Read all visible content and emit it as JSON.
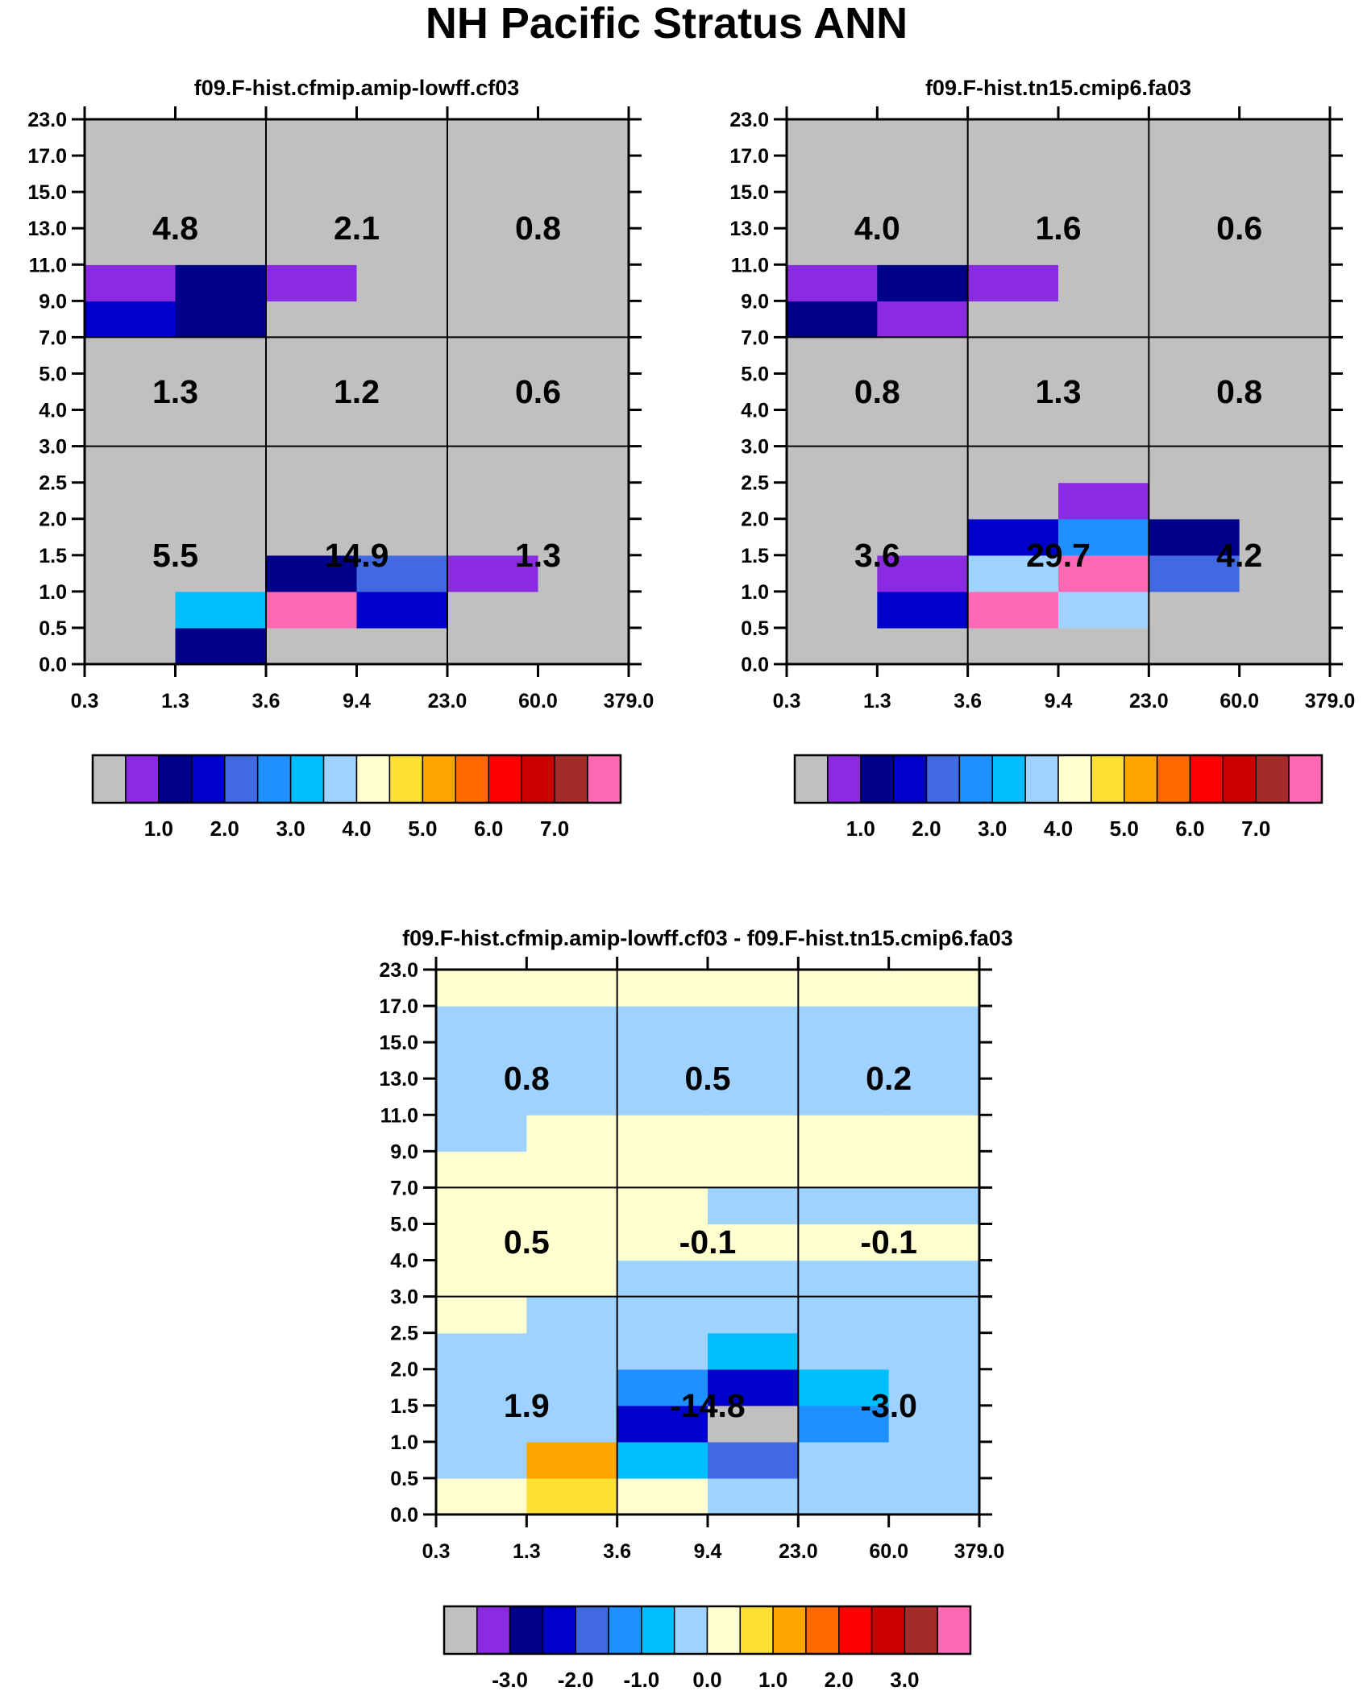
{
  "title": "NH Pacific Stratus ANN",
  "chart_data": [
    {
      "type": "heatmap",
      "title": "f09.F-hist.cfmip.amip-lowff.cf03",
      "x_tick_labels": [
        "0.3",
        "1.3",
        "3.6",
        "9.4",
        "23.0",
        "60.0",
        "379.0"
      ],
      "y_tick_labels": [
        "0.0",
        "0.5",
        "1.0",
        "1.5",
        "2.0",
        "2.5",
        "3.0",
        "4.0",
        "5.0",
        "7.0",
        "9.0",
        "11.0",
        "13.0",
        "15.0",
        "17.0",
        "23.0"
      ],
      "row_order": "bottom-to-top",
      "cells": [
        [
          "gray",
          "navy",
          "gray",
          "gray",
          "gray",
          "gray"
        ],
        [
          "gray",
          "deepskyblue",
          "hotpink",
          "mediumblue",
          "gray",
          "gray"
        ],
        [
          "gray",
          "gray",
          "navy",
          "royalblue",
          "blueviolet",
          "gray"
        ],
        [
          "gray",
          "gray",
          "gray",
          "gray",
          "gray",
          "gray"
        ],
        [
          "gray",
          "gray",
          "gray",
          "gray",
          "gray",
          "gray"
        ],
        [
          "gray",
          "gray",
          "gray",
          "gray",
          "gray",
          "gray"
        ],
        [
          "gray",
          "gray",
          "gray",
          "gray",
          "gray",
          "gray"
        ],
        [
          "gray",
          "gray",
          "gray",
          "gray",
          "gray",
          "gray"
        ],
        [
          "gray",
          "gray",
          "gray",
          "gray",
          "gray",
          "gray"
        ],
        [
          "mediumblue",
          "navy",
          "gray",
          "gray",
          "gray",
          "gray"
        ],
        [
          "blueviolet",
          "navy",
          "blueviolet",
          "gray",
          "gray",
          "gray"
        ],
        [
          "gray",
          "gray",
          "gray",
          "gray",
          "gray",
          "gray"
        ],
        [
          "gray",
          "gray",
          "gray",
          "gray",
          "gray",
          "gray"
        ],
        [
          "gray",
          "gray",
          "gray",
          "gray",
          "gray",
          "gray"
        ],
        [
          "gray",
          "gray",
          "gray",
          "gray",
          "gray",
          "gray"
        ]
      ],
      "regions": [
        {
          "label": "5.5",
          "col": 0,
          "band": 0
        },
        {
          "label": "14.9",
          "col": 1,
          "band": 0
        },
        {
          "label": "1.3",
          "col": 2,
          "band": 0
        },
        {
          "label": "1.3",
          "col": 0,
          "band": 1
        },
        {
          "label": "1.2",
          "col": 1,
          "band": 1
        },
        {
          "label": "0.6",
          "col": 2,
          "band": 1
        },
        {
          "label": "4.8",
          "col": 0,
          "band": 2
        },
        {
          "label": "2.1",
          "col": 1,
          "band": 2
        },
        {
          "label": "0.8",
          "col": 2,
          "band": 2
        }
      ],
      "colorbar": {
        "colors": [
          "#c0c0c0",
          "#8a2be2",
          "#00008b",
          "#0000cd",
          "#4169e1",
          "#1e90ff",
          "#00bfff",
          "#a0d2ff",
          "#ffffd0",
          "#ffe135",
          "#ffa500",
          "#ff6a00",
          "#ff0000",
          "#cd0000",
          "#a52a2a",
          "#ff69b4"
        ],
        "labels": [
          "1.0",
          "2.0",
          "3.0",
          "4.0",
          "5.0",
          "6.0",
          "7.0"
        ]
      }
    },
    {
      "type": "heatmap",
      "title": "f09.F-hist.tn15.cmip6.fa03",
      "x_tick_labels": [
        "0.3",
        "1.3",
        "3.6",
        "9.4",
        "23.0",
        "60.0",
        "379.0"
      ],
      "y_tick_labels": [
        "0.0",
        "0.5",
        "1.0",
        "1.5",
        "2.0",
        "2.5",
        "3.0",
        "4.0",
        "5.0",
        "7.0",
        "9.0",
        "11.0",
        "13.0",
        "15.0",
        "17.0",
        "23.0"
      ],
      "row_order": "bottom-to-top",
      "cells": [
        [
          "gray",
          "gray",
          "gray",
          "gray",
          "gray",
          "gray"
        ],
        [
          "gray",
          "mediumblue",
          "hotpink",
          "lightskyblue",
          "gray",
          "gray"
        ],
        [
          "gray",
          "blueviolet",
          "lightskyblue",
          "hotpink",
          "royalblue",
          "gray"
        ],
        [
          "gray",
          "gray",
          "mediumblue",
          "dodgerblue",
          "navy",
          "gray"
        ],
        [
          "gray",
          "gray",
          "gray",
          "blueviolet",
          "gray",
          "gray"
        ],
        [
          "gray",
          "gray",
          "gray",
          "gray",
          "gray",
          "gray"
        ],
        [
          "gray",
          "gray",
          "gray",
          "gray",
          "gray",
          "gray"
        ],
        [
          "gray",
          "gray",
          "gray",
          "gray",
          "gray",
          "gray"
        ],
        [
          "gray",
          "gray",
          "gray",
          "gray",
          "gray",
          "gray"
        ],
        [
          "navy",
          "blueviolet",
          "gray",
          "gray",
          "gray",
          "gray"
        ],
        [
          "blueviolet",
          "navy",
          "blueviolet",
          "gray",
          "gray",
          "gray"
        ],
        [
          "gray",
          "gray",
          "gray",
          "gray",
          "gray",
          "gray"
        ],
        [
          "gray",
          "gray",
          "gray",
          "gray",
          "gray",
          "gray"
        ],
        [
          "gray",
          "gray",
          "gray",
          "gray",
          "gray",
          "gray"
        ],
        [
          "gray",
          "gray",
          "gray",
          "gray",
          "gray",
          "gray"
        ]
      ],
      "regions": [
        {
          "label": "3.6",
          "col": 0,
          "band": 0
        },
        {
          "label": "29.7",
          "col": 1,
          "band": 0
        },
        {
          "label": "4.2",
          "col": 2,
          "band": 0
        },
        {
          "label": "0.8",
          "col": 0,
          "band": 1
        },
        {
          "label": "1.3",
          "col": 1,
          "band": 1
        },
        {
          "label": "0.8",
          "col": 2,
          "band": 1
        },
        {
          "label": "4.0",
          "col": 0,
          "band": 2
        },
        {
          "label": "1.6",
          "col": 1,
          "band": 2
        },
        {
          "label": "0.6",
          "col": 2,
          "band": 2
        }
      ],
      "colorbar": {
        "colors": [
          "#c0c0c0",
          "#8a2be2",
          "#00008b",
          "#0000cd",
          "#4169e1",
          "#1e90ff",
          "#00bfff",
          "#a0d2ff",
          "#ffffd0",
          "#ffe135",
          "#ffa500",
          "#ff6a00",
          "#ff0000",
          "#cd0000",
          "#a52a2a",
          "#ff69b4"
        ],
        "labels": [
          "1.0",
          "2.0",
          "3.0",
          "4.0",
          "5.0",
          "6.0",
          "7.0"
        ]
      }
    },
    {
      "type": "heatmap",
      "title": "f09.F-hist.cfmip.amip-lowff.cf03 - f09.F-hist.tn15.cmip6.fa03",
      "x_tick_labels": [
        "0.3",
        "1.3",
        "3.6",
        "9.4",
        "23.0",
        "60.0",
        "379.0"
      ],
      "y_tick_labels": [
        "0.0",
        "0.5",
        "1.0",
        "1.5",
        "2.0",
        "2.5",
        "3.0",
        "4.0",
        "5.0",
        "7.0",
        "9.0",
        "11.0",
        "13.0",
        "15.0",
        "17.0",
        "23.0"
      ],
      "row_order": "bottom-to-top",
      "cells": [
        [
          "lightyellow",
          "gold",
          "lightyellow",
          "lightskyblue",
          "lightskyblue",
          "lightskyblue"
        ],
        [
          "lightskyblue",
          "orange",
          "deepskyblue",
          "royalblue",
          "lightskyblue",
          "lightskyblue"
        ],
        [
          "lightskyblue",
          "lightskyblue",
          "mediumblue",
          "gray",
          "dodgerblue",
          "lightskyblue"
        ],
        [
          "lightskyblue",
          "lightskyblue",
          "dodgerblue",
          "mediumblue",
          "deepskyblue",
          "lightskyblue"
        ],
        [
          "lightskyblue",
          "lightskyblue",
          "lightskyblue",
          "deepskyblue",
          "lightskyblue",
          "lightskyblue"
        ],
        [
          "lightyellow",
          "lightskyblue",
          "lightskyblue",
          "lightskyblue",
          "lightskyblue",
          "lightskyblue"
        ],
        [
          "lightyellow",
          "lightyellow",
          "lightskyblue",
          "lightskyblue",
          "lightskyblue",
          "lightskyblue"
        ],
        [
          "lightyellow",
          "lightyellow",
          "lightyellow",
          "lightyellow",
          "lightyellow",
          "lightyellow"
        ],
        [
          "lightyellow",
          "lightyellow",
          "lightyellow",
          "lightskyblue",
          "lightskyblue",
          "lightskyblue"
        ],
        [
          "lightyellow",
          "lightyellow",
          "lightyellow",
          "lightyellow",
          "lightyellow",
          "lightyellow"
        ],
        [
          "lightskyblue",
          "lightyellow",
          "lightyellow",
          "lightyellow",
          "lightyellow",
          "lightyellow"
        ],
        [
          "lightskyblue",
          "lightskyblue",
          "lightskyblue",
          "lightskyblue",
          "lightskyblue",
          "lightskyblue"
        ],
        [
          "lightskyblue",
          "lightskyblue",
          "lightskyblue",
          "lightskyblue",
          "lightskyblue",
          "lightskyblue"
        ],
        [
          "lightskyblue",
          "lightskyblue",
          "lightskyblue",
          "lightskyblue",
          "lightskyblue",
          "lightskyblue"
        ],
        [
          "lightyellow",
          "lightyellow",
          "lightyellow",
          "lightyellow",
          "lightyellow",
          "lightyellow"
        ]
      ],
      "regions": [
        {
          "label": "1.9",
          "col": 0,
          "band": 0
        },
        {
          "label": "-14.8",
          "col": 1,
          "band": 0
        },
        {
          "label": "-3.0",
          "col": 2,
          "band": 0
        },
        {
          "label": "0.5",
          "col": 0,
          "band": 1
        },
        {
          "label": "-0.1",
          "col": 1,
          "band": 1
        },
        {
          "label": "-0.1",
          "col": 2,
          "band": 1
        },
        {
          "label": "0.8",
          "col": 0,
          "band": 2
        },
        {
          "label": "0.5",
          "col": 1,
          "band": 2
        },
        {
          "label": "0.2",
          "col": 2,
          "band": 2
        }
      ],
      "colorbar": {
        "colors": [
          "#c0c0c0",
          "#8a2be2",
          "#00008b",
          "#0000cd",
          "#4169e1",
          "#1e90ff",
          "#00bfff",
          "#a0d2ff",
          "#ffffd0",
          "#ffe135",
          "#ffa500",
          "#ff6a00",
          "#ff0000",
          "#cd0000",
          "#a52a2a",
          "#ff69b4"
        ],
        "labels": [
          "-3.0",
          "-2.0",
          "-1.0",
          "0.0",
          "1.0",
          "2.0",
          "3.0"
        ]
      }
    }
  ],
  "palette": {
    "gray": "#c0c0c0",
    "blueviolet": "#8a2be2",
    "navy": "#00008b",
    "mediumblue": "#0000cd",
    "royalblue": "#4169e1",
    "dodgerblue": "#1e90ff",
    "deepskyblue": "#00bfff",
    "lightskyblue": "#a0d2ff",
    "lightyellow": "#ffffd0",
    "gold": "#ffe135",
    "orange": "#ffa500",
    "hotpink": "#ff69b4"
  }
}
